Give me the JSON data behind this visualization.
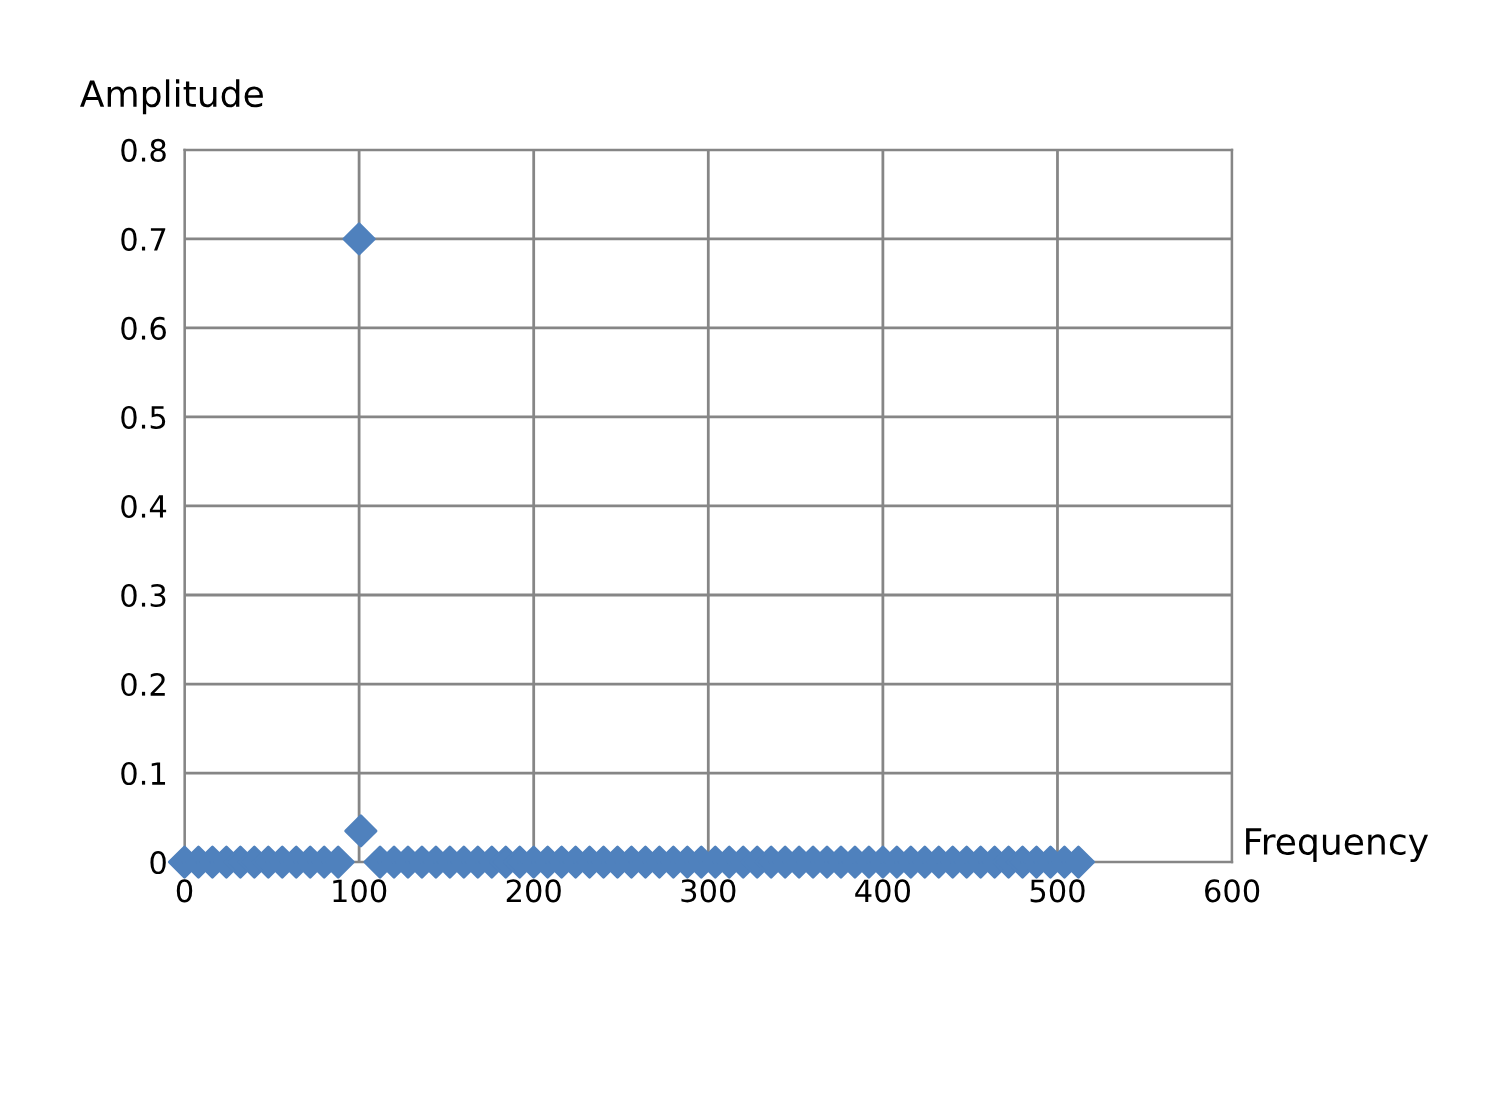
{
  "chart_data": {
    "type": "scatter",
    "xlabel": "Frequency",
    "ylabel": "Amplitude",
    "xlim": [
      0,
      600
    ],
    "xticks": [
      0,
      100,
      200,
      300,
      400,
      500,
      600
    ],
    "ylim": [
      0,
      0.8
    ],
    "yticks": [
      0,
      0.1,
      0.2,
      0.3,
      0.4,
      0.5,
      0.6,
      0.7,
      0.8
    ],
    "grid": true,
    "marker": "diamond",
    "legend": false,
    "series": [
      {
        "color": "#4f81bd",
        "x": [
          0,
          8,
          16,
          24,
          32,
          40,
          48,
          56,
          64,
          72,
          80,
          88,
          100,
          101,
          112,
          120,
          128,
          136,
          144,
          152,
          160,
          168,
          176,
          184,
          192,
          200,
          208,
          216,
          224,
          232,
          240,
          248,
          256,
          264,
          272,
          280,
          288,
          296,
          304,
          312,
          320,
          328,
          336,
          344,
          352,
          360,
          368,
          376,
          384,
          392,
          400,
          408,
          416,
          424,
          432,
          440,
          448,
          456,
          464,
          472,
          480,
          488,
          496,
          504,
          512
        ],
        "values": [
          0,
          0,
          0,
          0,
          0,
          0,
          0,
          0,
          0,
          0,
          0,
          0,
          0.7,
          0.035,
          0,
          0,
          0,
          0,
          0,
          0,
          0,
          0,
          0,
          0,
          0,
          0,
          0,
          0,
          0,
          0,
          0,
          0,
          0,
          0,
          0,
          0,
          0,
          0,
          0,
          0,
          0,
          0,
          0,
          0,
          0,
          0,
          0,
          0,
          0,
          0,
          0,
          0,
          0,
          0,
          0,
          0,
          0,
          0,
          0,
          0,
          0,
          0,
          0,
          0,
          0
        ]
      }
    ]
  }
}
